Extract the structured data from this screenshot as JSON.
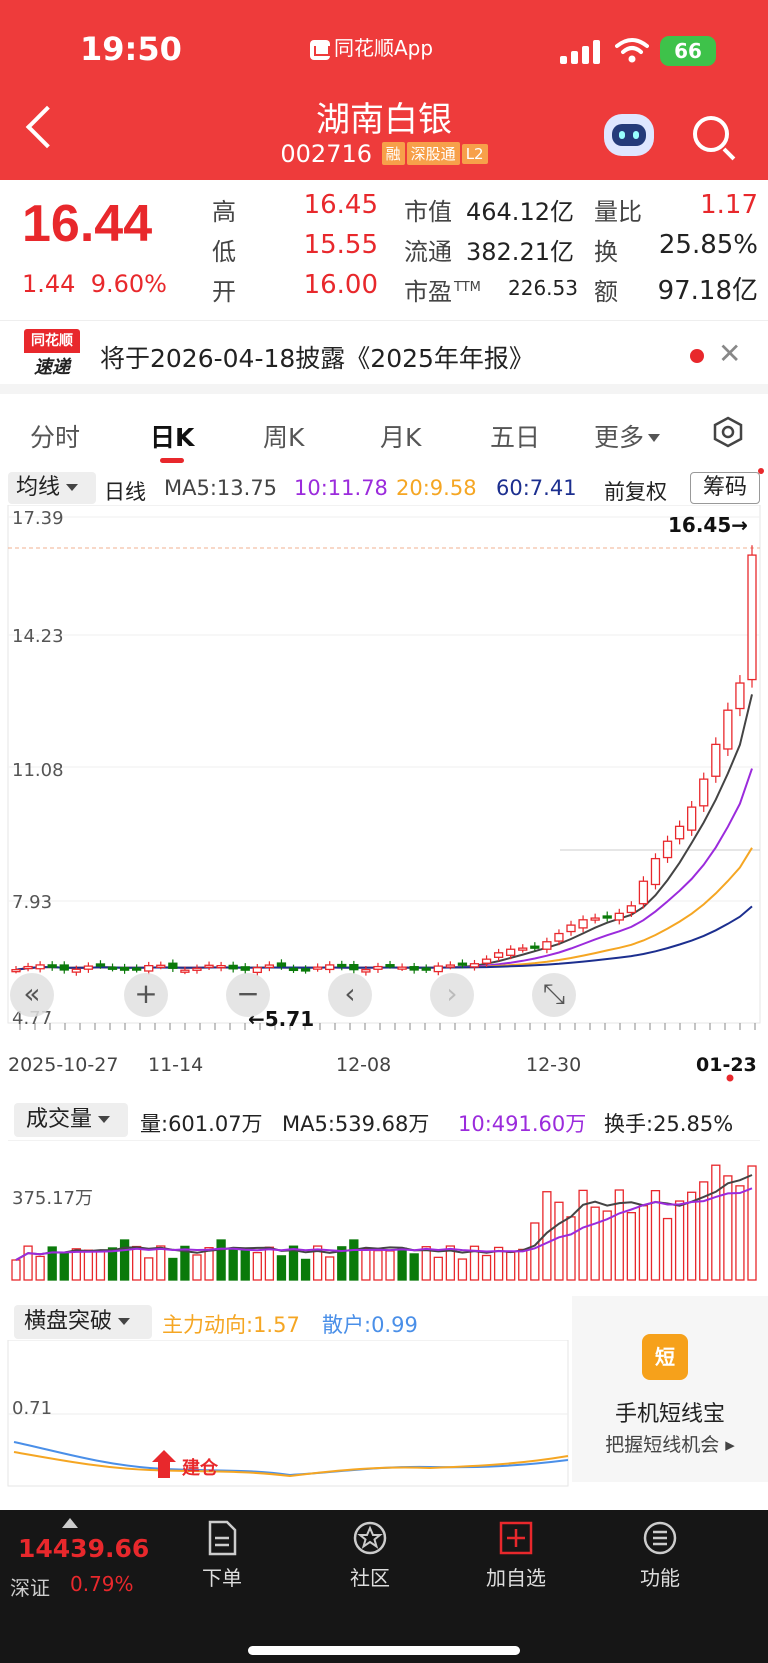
{
  "status_bar": {
    "time": "19:50",
    "app_name": "同花顺App",
    "battery": "66"
  },
  "header": {
    "title": "湖南白银",
    "code": "002716",
    "badges": [
      "融",
      "深股通",
      "L2"
    ]
  },
  "quote": {
    "price": "16.44",
    "change": "1.44",
    "change_pct": "9.60%",
    "rows": [
      [
        {
          "label": "高",
          "value": "16.45",
          "color": "red"
        },
        {
          "label": "市值",
          "value": "464.12亿"
        },
        {
          "label": "量比",
          "value": "1.17",
          "color": "red"
        }
      ],
      [
        {
          "label": "低",
          "value": "15.55",
          "color": "red"
        },
        {
          "label": "流通",
          "value": "382.21亿"
        },
        {
          "label": "换",
          "value": "25.85%"
        }
      ],
      [
        {
          "label": "开",
          "value": "16.00",
          "color": "red"
        },
        {
          "label": "市盈",
          "sup": "TTM",
          "value": "226.53"
        },
        {
          "label": "额",
          "value": "97.18亿"
        }
      ]
    ]
  },
  "notice": {
    "logo_top": "同花顺",
    "logo_bottom": "速递",
    "text": "将于2026-04-18披露《2025年年报》"
  },
  "tabs": [
    "分时",
    "日K",
    "周K",
    "月K",
    "五日",
    "更多"
  ],
  "active_tab": 1,
  "indicator_bar": {
    "selector": "均线",
    "period": "日线",
    "adjust": "前复权",
    "chips_button": "筹码",
    "ma": [
      {
        "label": "MA5:13.75",
        "color": "#444444"
      },
      {
        "label": "10:11.78",
        "color": "#9b2bdc"
      },
      {
        "label": "20:9.58",
        "color": "#f5a623"
      },
      {
        "label": "60:7.41",
        "color": "#1c2f8f"
      }
    ]
  },
  "kline": {
    "y_ticks": [
      "17.39",
      "14.23",
      "11.08",
      "7.93",
      "4.77"
    ],
    "high_marker": "16.45→",
    "low_marker": "←5.71",
    "x_ticks": [
      "2025-10-27",
      "11-14",
      "12-08",
      "12-30",
      "01-23"
    ],
    "nav_buttons": [
      "«",
      "+",
      "−",
      "‹",
      "›",
      "⤡"
    ]
  },
  "volume": {
    "selector": "成交量",
    "vol": "量:601.07万",
    "ma5": "MA5:539.68万",
    "ma10": "10:491.60万",
    "turnover": "换手:25.85%",
    "y_tick": "375.17万"
  },
  "mini_indicator": {
    "selector": "横盘突破",
    "main": "主力动向:1.57",
    "retail": "散户:0.99",
    "y_tick": "0.71",
    "signal": "建仓"
  },
  "promo": {
    "icon": "短",
    "title": "手机短线宝",
    "subtitle": "把握短线机会 ▸"
  },
  "bottom_bar": {
    "index_value": "14439.66",
    "index_name": "深证",
    "index_pct": "0.79%",
    "items": [
      {
        "label": "下单",
        "icon": "order-icon"
      },
      {
        "label": "社区",
        "icon": "community-icon"
      },
      {
        "label": "加自选",
        "icon": "add-watchlist-icon"
      },
      {
        "label": "功能",
        "icon": "menu-icon"
      }
    ]
  },
  "colors": {
    "up": "#e8282c",
    "down": "#0a7a0a",
    "header_bg": "#ee3b3b"
  }
}
